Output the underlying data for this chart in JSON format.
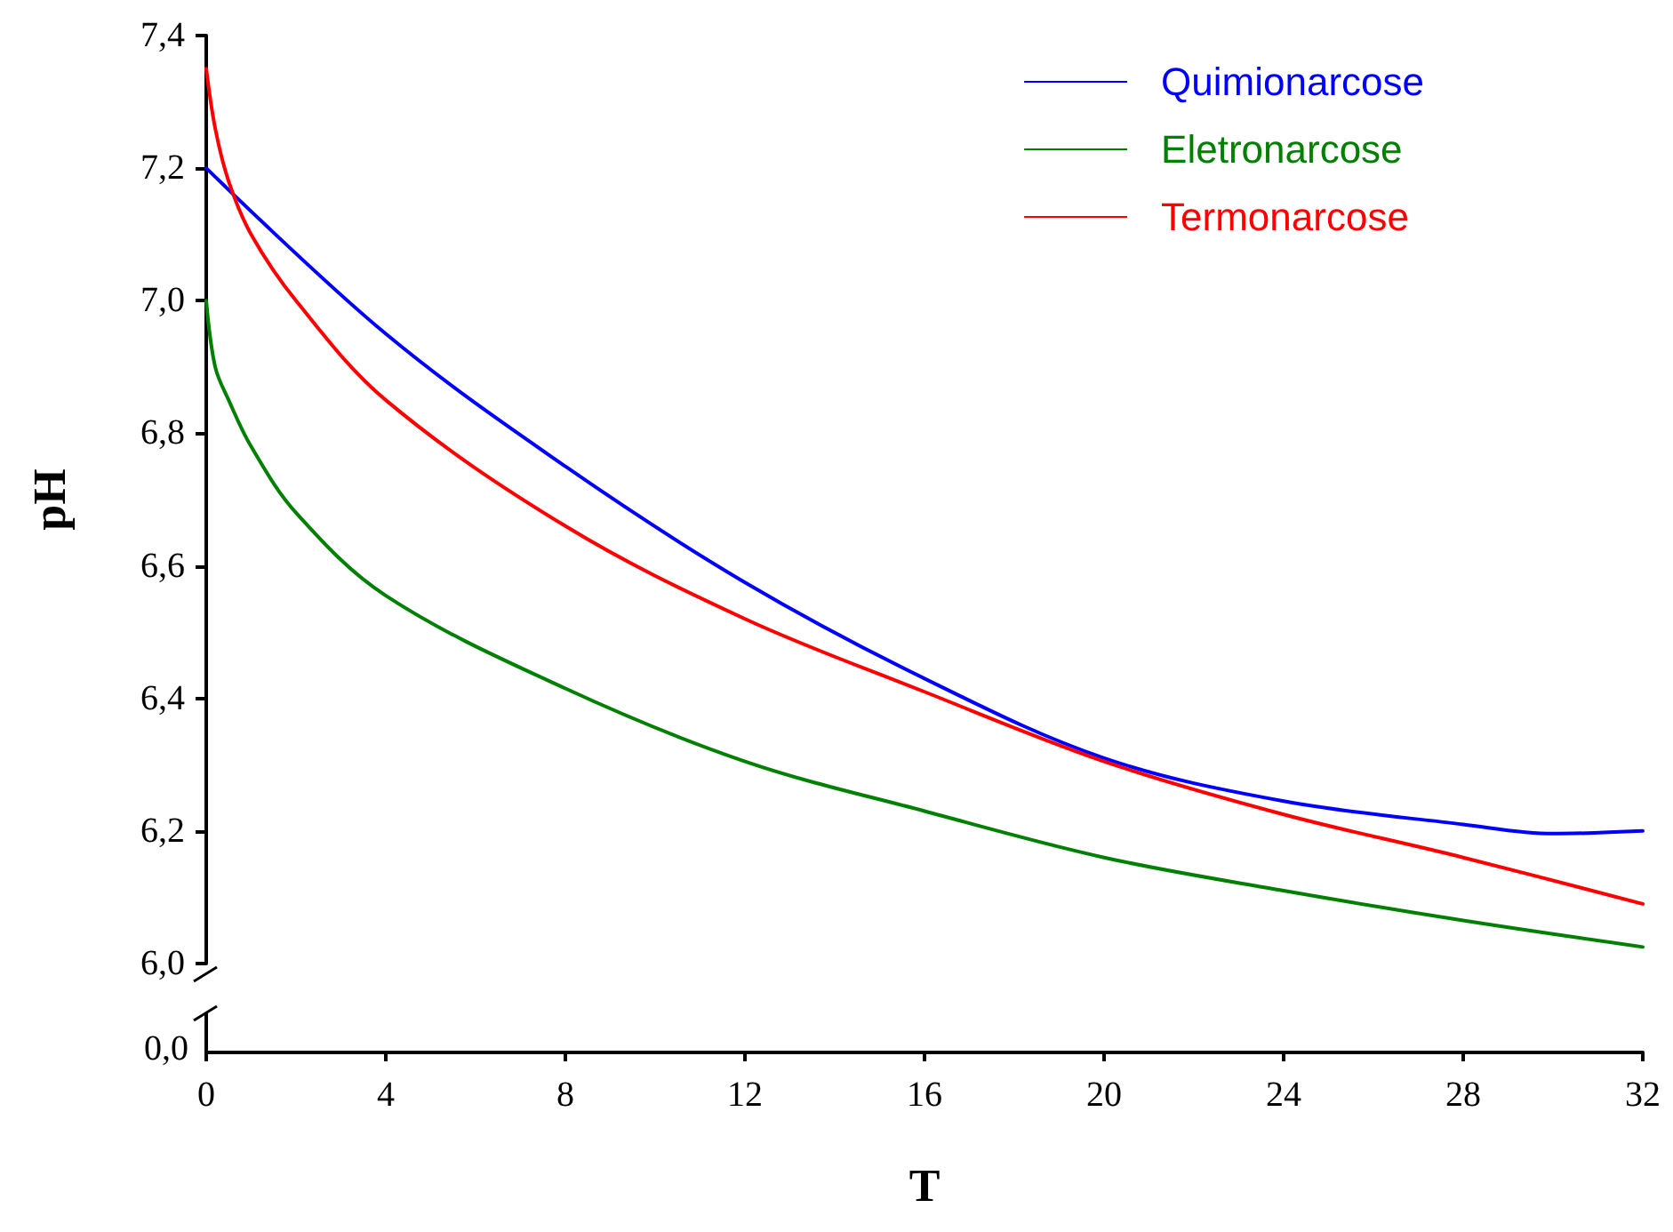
{
  "chart_data": {
    "type": "line",
    "xlabel": "T",
    "ylabel": "pH",
    "legend": "top right",
    "marker": "none",
    "line_style": "solid",
    "grid": false,
    "annotations": [
      "0,0"
    ],
    "xlim": [
      0,
      32
    ],
    "xticks": [
      0,
      4,
      8,
      12,
      16,
      20,
      24,
      28,
      32
    ],
    "ylim": [
      6.0,
      7.4
    ],
    "yticks": [
      {
        "value": 6.0,
        "label": "6,0"
      },
      {
        "value": 6.2,
        "label": "6,2"
      },
      {
        "value": 6.4,
        "label": "6,4"
      },
      {
        "value": 6.6,
        "label": "6,6"
      },
      {
        "value": 6.8,
        "label": "6,8"
      },
      {
        "value": 7.0,
        "label": "7,0"
      },
      {
        "value": 7.2,
        "label": "7,2"
      },
      {
        "value": 7.4,
        "label": "7,4"
      }
    ],
    "series": [
      {
        "name": "Quimionarcose",
        "color": "#0000ff",
        "x": [
          0,
          4,
          8,
          12,
          16,
          20,
          24,
          28,
          30,
          32
        ],
        "values": [
          7.2,
          6.95,
          6.75,
          6.575,
          6.43,
          6.31,
          6.245,
          6.21,
          6.196,
          6.2
        ]
      },
      {
        "name": "Eletronarcose",
        "color": "#008000",
        "x": [
          0,
          0.2,
          0.5,
          1,
          2,
          4,
          8,
          12,
          16,
          20,
          24,
          28,
          32
        ],
        "values": [
          7.0,
          6.9,
          6.85,
          6.78,
          6.68,
          6.555,
          6.415,
          6.305,
          6.23,
          6.16,
          6.11,
          6.065,
          6.025
        ]
      },
      {
        "name": "Termonarcose",
        "color": "#ff0000",
        "x": [
          0,
          0.2,
          0.5,
          1,
          2,
          4,
          8,
          12,
          16,
          20,
          24,
          28,
          32
        ],
        "values": [
          7.35,
          7.26,
          7.18,
          7.1,
          7.0,
          6.85,
          6.66,
          6.52,
          6.41,
          6.305,
          6.225,
          6.16,
          6.09
        ]
      }
    ]
  }
}
